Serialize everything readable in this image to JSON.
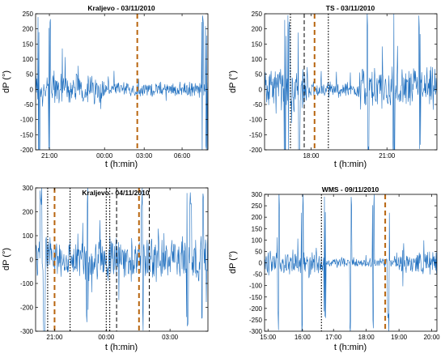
{
  "chart_data": [
    {
      "type": "line",
      "title": "Kraljevo - 03/11/2010",
      "xlabel": "t (h:min)",
      "ylabel": "dP (°)",
      "xticks": [
        "21:00",
        "00:00",
        "03:00",
        "06:00"
      ],
      "ylim": [
        -200,
        250
      ],
      "yticks": [
        -200,
        -150,
        -100,
        -50,
        0,
        50,
        100,
        150,
        200,
        250
      ],
      "series": [
        {
          "color": "#1f6fbf",
          "kind": "noise-signal",
          "segments": [
            {
              "from": 0.0,
              "to": 0.4,
              "amp": 40
            },
            {
              "from": 0.4,
              "to": 1.0,
              "amp": 18
            }
          ]
        }
      ],
      "markers": [
        {
          "pos": 0.59,
          "style": "orange-dashed"
        }
      ],
      "bursts": [
        0.02,
        0.08,
        0.97,
        0.99
      ]
    },
    {
      "type": "line",
      "title": "TS - 03/11/2010",
      "xlabel": "t (h:min)",
      "ylabel": "dP (°)",
      "xticks": [
        "18:00",
        "21:00"
      ],
      "ylim": [
        -200,
        250
      ],
      "yticks": [
        -200,
        -150,
        -100,
        -50,
        0,
        50,
        100,
        150,
        200,
        250
      ],
      "series": [
        {
          "color": "#1f6fbf",
          "kind": "noise-signal",
          "segments": [
            {
              "from": 0.0,
              "to": 0.25,
              "amp": 60
            },
            {
              "from": 0.25,
              "to": 0.55,
              "amp": 20
            },
            {
              "from": 0.55,
              "to": 1.0,
              "amp": 55
            }
          ]
        }
      ],
      "markers": [
        {
          "pos": 0.15,
          "style": "black-dotted"
        },
        {
          "pos": 0.23,
          "style": "black-dashed"
        },
        {
          "pos": 0.29,
          "style": "orange-dashed"
        },
        {
          "pos": 0.37,
          "style": "black-dotted"
        }
      ],
      "bursts": [
        0.12,
        0.14,
        0.2,
        0.6,
        0.75,
        0.9
      ]
    },
    {
      "type": "line",
      "title": "Kraljevo - 04/11/2010",
      "xlabel": "t (h:min)",
      "ylabel": "dP (°)",
      "xticks": [
        "21:00",
        "00:00",
        "03:00"
      ],
      "ylim": [
        -300,
        300
      ],
      "yticks": [
        -300,
        -200,
        -100,
        0,
        100,
        200,
        300
      ],
      "series": [
        {
          "color": "#1f6fbf",
          "kind": "noise-signal",
          "segments": [
            {
              "from": 0.0,
              "to": 1.0,
              "amp": 70
            }
          ]
        }
      ],
      "markers": [
        {
          "pos": 0.07,
          "style": "black-dotted"
        },
        {
          "pos": 0.11,
          "style": "orange-dashed"
        },
        {
          "pos": 0.2,
          "style": "black-dotted"
        },
        {
          "pos": 0.41,
          "style": "black-dotted"
        },
        {
          "pos": 0.43,
          "style": "black-dotted"
        },
        {
          "pos": 0.47,
          "style": "black-dashed"
        },
        {
          "pos": 0.6,
          "style": "orange-dashed"
        },
        {
          "pos": 0.66,
          "style": "black-dashed"
        }
      ],
      "bursts": [
        0.03,
        0.05,
        0.3,
        0.62,
        0.88,
        0.9,
        0.97
      ]
    },
    {
      "type": "line",
      "title": "WMS - 09/11/2010",
      "xlabel": "t (h:min)",
      "ylabel": "dP (°)",
      "xticks": [
        "15:00",
        "16:00",
        "17:00",
        "18:00",
        "19:00",
        "20:00"
      ],
      "ylim": [
        -300,
        300
      ],
      "yticks": [
        -300,
        -250,
        -200,
        -150,
        -100,
        -50,
        0,
        50,
        100,
        150,
        200,
        250,
        300
      ],
      "series": [
        {
          "color": "#1f6fbf",
          "kind": "noise-signal",
          "segments": [
            {
              "from": 0.0,
              "to": 0.35,
              "amp": 40
            },
            {
              "from": 0.35,
              "to": 0.75,
              "amp": 15
            },
            {
              "from": 0.75,
              "to": 1.0,
              "amp": 40
            }
          ]
        }
      ],
      "markers": [
        {
          "pos": 0.33,
          "style": "black-dotted"
        },
        {
          "pos": 0.7,
          "style": "orange-dashed"
        }
      ],
      "bursts": [
        0.08,
        0.22,
        0.35,
        0.5,
        0.63,
        0.72
      ]
    }
  ]
}
